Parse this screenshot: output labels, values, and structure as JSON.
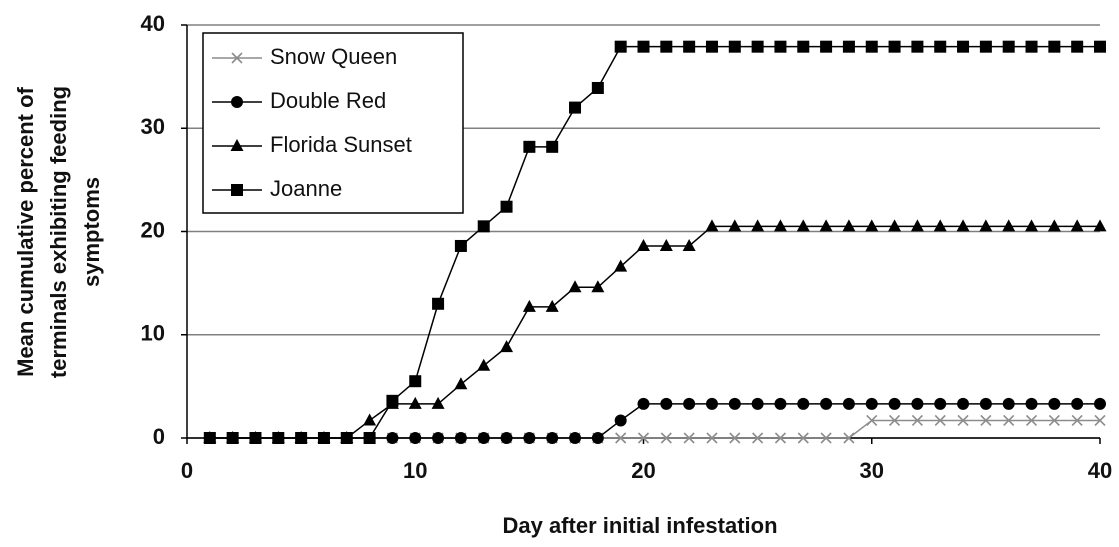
{
  "chart_data": {
    "type": "line",
    "ylabel": [
      "Mean cumulative percent of",
      "terminals exhibiting feeding",
      "symptoms"
    ],
    "xlabel": "Day after initial infestation",
    "x": [
      1,
      2,
      3,
      4,
      5,
      6,
      7,
      8,
      9,
      10,
      11,
      12,
      13,
      14,
      15,
      16,
      17,
      18,
      19,
      20,
      21,
      22,
      23,
      24,
      25,
      26,
      27,
      28,
      29,
      30,
      31,
      32,
      33,
      34,
      35,
      36,
      37,
      38,
      39,
      40
    ],
    "series": [
      {
        "name": "Snow Queen",
        "color": "#8c8c8c",
        "marker": "x",
        "values": [
          0,
          0,
          0,
          0,
          0,
          0,
          0,
          0,
          0,
          0,
          0,
          0,
          0,
          0,
          0,
          0,
          0,
          0,
          0,
          0,
          0,
          0,
          0,
          0,
          0,
          0,
          0,
          0,
          0,
          1.7,
          1.7,
          1.7,
          1.7,
          1.7,
          1.7,
          1.7,
          1.7,
          1.7,
          1.7,
          1.7
        ]
      },
      {
        "name": "Double Red",
        "color": "#000000",
        "marker": "circle",
        "values": [
          0,
          0,
          0,
          0,
          0,
          0,
          0,
          0,
          0,
          0,
          0,
          0,
          0,
          0,
          0,
          0,
          0,
          0,
          1.7,
          3.3,
          3.3,
          3.3,
          3.3,
          3.3,
          3.3,
          3.3,
          3.3,
          3.3,
          3.3,
          3.3,
          3.3,
          3.3,
          3.3,
          3.3,
          3.3,
          3.3,
          3.3,
          3.3,
          3.3,
          3.3
        ]
      },
      {
        "name": "Florida Sunset",
        "color": "#000000",
        "marker": "triangle",
        "values": [
          0,
          0,
          0,
          0,
          0,
          0,
          0,
          1.7,
          3.3,
          3.3,
          3.3,
          5.2,
          7.0,
          8.8,
          12.7,
          12.7,
          14.6,
          14.6,
          16.6,
          18.6,
          18.6,
          18.6,
          20.5,
          20.5,
          20.5,
          20.5,
          20.5,
          20.5,
          20.5,
          20.5,
          20.5,
          20.5,
          20.5,
          20.5,
          20.5,
          20.5,
          20.5,
          20.5,
          20.5,
          20.5
        ]
      },
      {
        "name": "Joanne",
        "color": "#000000",
        "marker": "square",
        "values": [
          0,
          0,
          0,
          0,
          0,
          0,
          0,
          0,
          3.6,
          5.5,
          13.0,
          18.6,
          20.5,
          22.4,
          28.2,
          28.2,
          32.0,
          33.9,
          37.9,
          37.9,
          37.9,
          37.9,
          37.9,
          37.9,
          37.9,
          37.9,
          37.9,
          37.9,
          37.9,
          37.9,
          37.9,
          37.9,
          37.9,
          37.9,
          37.9,
          37.9,
          37.9,
          37.9,
          37.9,
          37.9
        ]
      }
    ],
    "xlim": [
      0,
      40
    ],
    "xticks": [
      0,
      10,
      20,
      30,
      40
    ],
    "ylim": [
      0,
      40
    ],
    "yticks": [
      0,
      10,
      20,
      30,
      40
    ],
    "grid": true,
    "legend": "top-left"
  }
}
